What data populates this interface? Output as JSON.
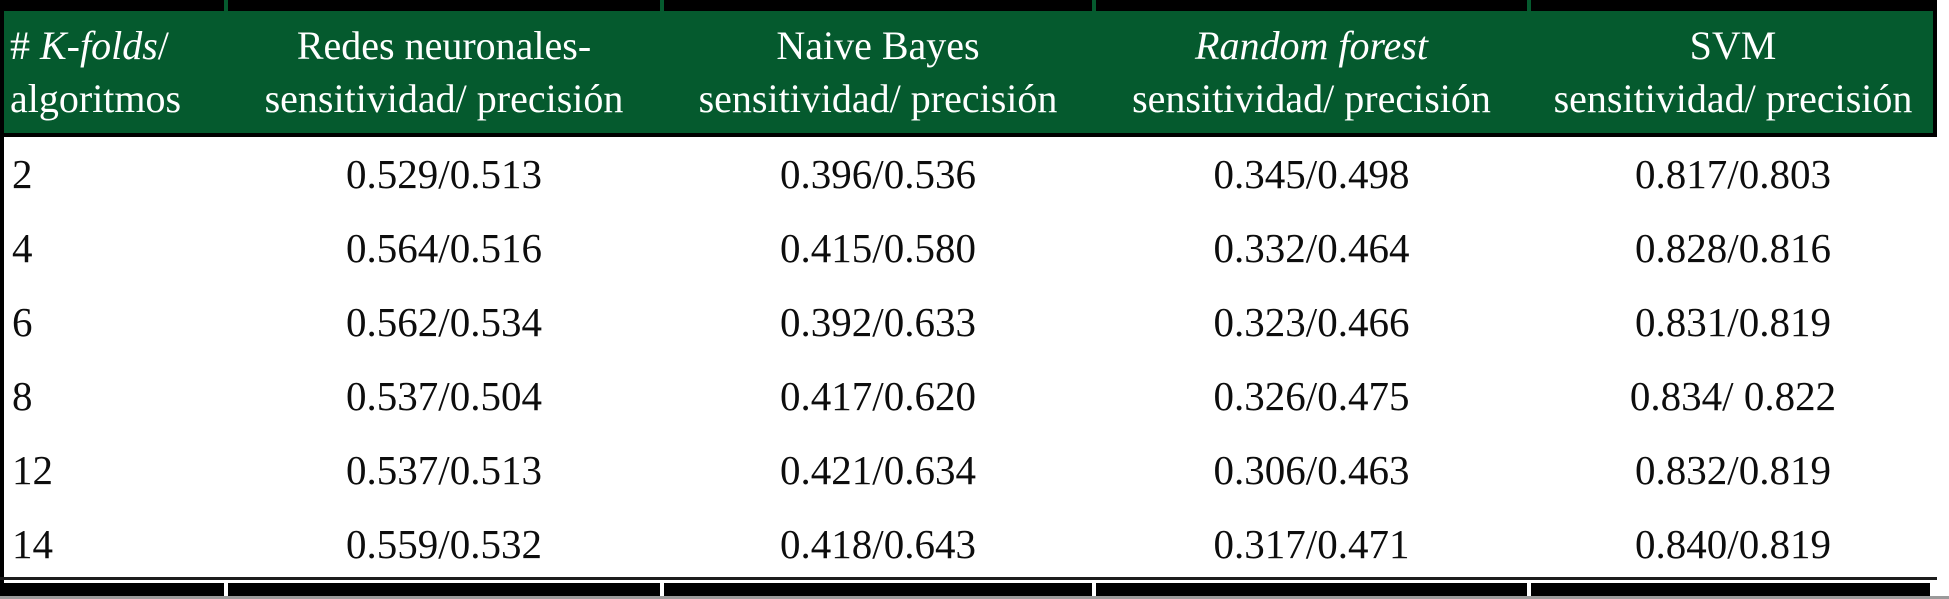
{
  "colors": {
    "header_bg": "#055A2E",
    "header_text": "#FFFFFF",
    "border": "#000000",
    "body_text": "#0D0D0D"
  },
  "table": {
    "header": {
      "col1": {
        "prefix": "# ",
        "italic": "K-folds",
        "suffix": "/",
        "line2": "algoritmos"
      },
      "col2": {
        "line1": "Redes neuronales-",
        "line2": "sensitividad/ precisión"
      },
      "col3": {
        "line1": "Naive Bayes",
        "line2": "sensitividad/ precisión"
      },
      "col4": {
        "line1": "Random forest",
        "line2": "sensitividad/ precisión"
      },
      "col5": {
        "line1": "SVM",
        "line2": "sensitividad/ precisión"
      }
    },
    "rows": [
      {
        "k": "2",
        "values": [
          "0.529/0.513",
          "0.396/0.536",
          "0.345/0.498",
          "0.817/0.803"
        ]
      },
      {
        "k": "4",
        "values": [
          "0.564/0.516",
          "0.415/0.580",
          "0.332/0.464",
          "0.828/0.816"
        ]
      },
      {
        "k": "6",
        "values": [
          "0.562/0.534",
          "0.392/0.633",
          "0.323/0.466",
          "0.831/0.819"
        ]
      },
      {
        "k": "8",
        "values": [
          "0.537/0.504",
          "0.417/0.620",
          "0.326/0.475",
          "0.834/ 0.822"
        ]
      },
      {
        "k": "12",
        "values": [
          "0.537/0.513",
          "0.421/0.634",
          "0.306/0.463",
          "0.832/0.819"
        ]
      },
      {
        "k": "14",
        "values": [
          "0.559/0.532",
          "0.418/0.643",
          "0.317/0.471",
          "0.840/0.819"
        ]
      }
    ]
  }
}
